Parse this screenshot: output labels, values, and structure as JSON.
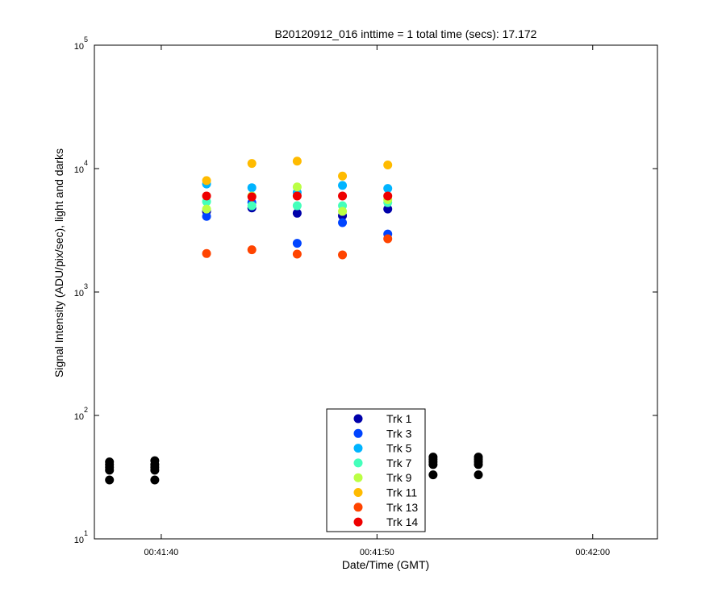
{
  "chart_data": {
    "type": "scatter",
    "title": "B20120912_016 inttime = 1 total time (secs): 17.172",
    "xlabel": "Date/Time (GMT)",
    "ylabel": "Signal Intensity (ADU/pix/sec), light and darks",
    "y_scale": "log",
    "xlim": [
      "00:41:36.9",
      "00:42:03.0"
    ],
    "ylim": [
      10,
      100000
    ],
    "x_ticks": [
      {
        "value": "00:41:40",
        "label": "00:41:40"
      },
      {
        "value": "00:41:50",
        "label": "00:41:50"
      },
      {
        "value": "00:42:00",
        "label": "00:42:00"
      }
    ],
    "y_ticks": [
      {
        "value": 10,
        "base": "10",
        "exp": "1"
      },
      {
        "value": 100,
        "base": "10",
        "exp": "2"
      },
      {
        "value": 1000,
        "base": "10",
        "exp": "3"
      },
      {
        "value": 10000,
        "base": "10",
        "exp": "4"
      },
      {
        "value": 100000,
        "base": "10",
        "exp": "5"
      }
    ],
    "grid": false,
    "legend_position": "bottom-center",
    "series": [
      {
        "name": "Trk 1",
        "color": "#0000aa",
        "x": [
          "00:41:42.1",
          "00:41:44.2",
          "00:41:46.3",
          "00:41:48.4",
          "00:41:50.5"
        ],
        "y": [
          4500,
          4800,
          4350,
          4150,
          4700
        ]
      },
      {
        "name": "Trk 3",
        "color": "#0044ff",
        "x": [
          "00:41:42.1",
          "00:41:44.2",
          "00:41:46.3",
          "00:41:48.4",
          "00:41:50.5"
        ],
        "y": [
          4100,
          5300,
          2480,
          3650,
          2950
        ]
      },
      {
        "name": "Trk 5",
        "color": "#00b4ff",
        "x": [
          "00:41:42.1",
          "00:41:44.2",
          "00:41:46.3",
          "00:41:48.4",
          "00:41:50.5"
        ],
        "y": [
          7500,
          7000,
          6400,
          7300,
          6900
        ]
      },
      {
        "name": "Trk 7",
        "color": "#44ffbb",
        "x": [
          "00:41:42.1",
          "00:41:44.2",
          "00:41:46.3",
          "00:41:48.4",
          "00:41:50.5"
        ],
        "y": [
          5400,
          5000,
          5000,
          5000,
          5300
        ]
      },
      {
        "name": "Trk 9",
        "color": "#bbff44",
        "x": [
          "00:41:42.1",
          "00:41:44.2",
          "00:41:46.3",
          "00:41:48.4",
          "00:41:50.5"
        ],
        "y": [
          4700,
          6000,
          7100,
          4500,
          5600
        ]
      },
      {
        "name": "Trk 11",
        "color": "#ffbb00",
        "x": [
          "00:41:42.1",
          "00:41:44.2",
          "00:41:46.3",
          "00:41:48.4",
          "00:41:50.5"
        ],
        "y": [
          8000,
          11000,
          11500,
          8700,
          10700
        ]
      },
      {
        "name": "Trk 13",
        "color": "#ff4400",
        "x": [
          "00:41:42.1",
          "00:41:44.2",
          "00:41:46.3",
          "00:41:48.4",
          "00:41:50.5"
        ],
        "y": [
          2050,
          2200,
          2030,
          2000,
          2700
        ]
      },
      {
        "name": "Trk 14",
        "color": "#ee0000",
        "x": [
          "00:41:42.1",
          "00:41:44.2",
          "00:41:46.3",
          "00:41:48.4",
          "00:41:50.5"
        ],
        "y": [
          6000,
          5900,
          6000,
          6000,
          6000
        ]
      },
      {
        "color": "#000000",
        "x": [
          "00:41:37.6",
          "00:41:37.6",
          "00:41:37.6",
          "00:41:37.6",
          "00:41:37.6",
          "00:41:39.7",
          "00:41:39.7",
          "00:41:39.7",
          "00:41:39.7",
          "00:41:39.7",
          "00:41:52.6",
          "00:41:52.6",
          "00:41:52.6",
          "00:41:52.6",
          "00:41:52.6",
          "00:41:54.7",
          "00:41:54.7",
          "00:41:54.7",
          "00:41:54.7",
          "00:41:54.7"
        ],
        "y": [
          30,
          36,
          38,
          40,
          42,
          30,
          36,
          38,
          40,
          43,
          33,
          40,
          42,
          44,
          46,
          33,
          40,
          42,
          44,
          46
        ]
      }
    ]
  }
}
